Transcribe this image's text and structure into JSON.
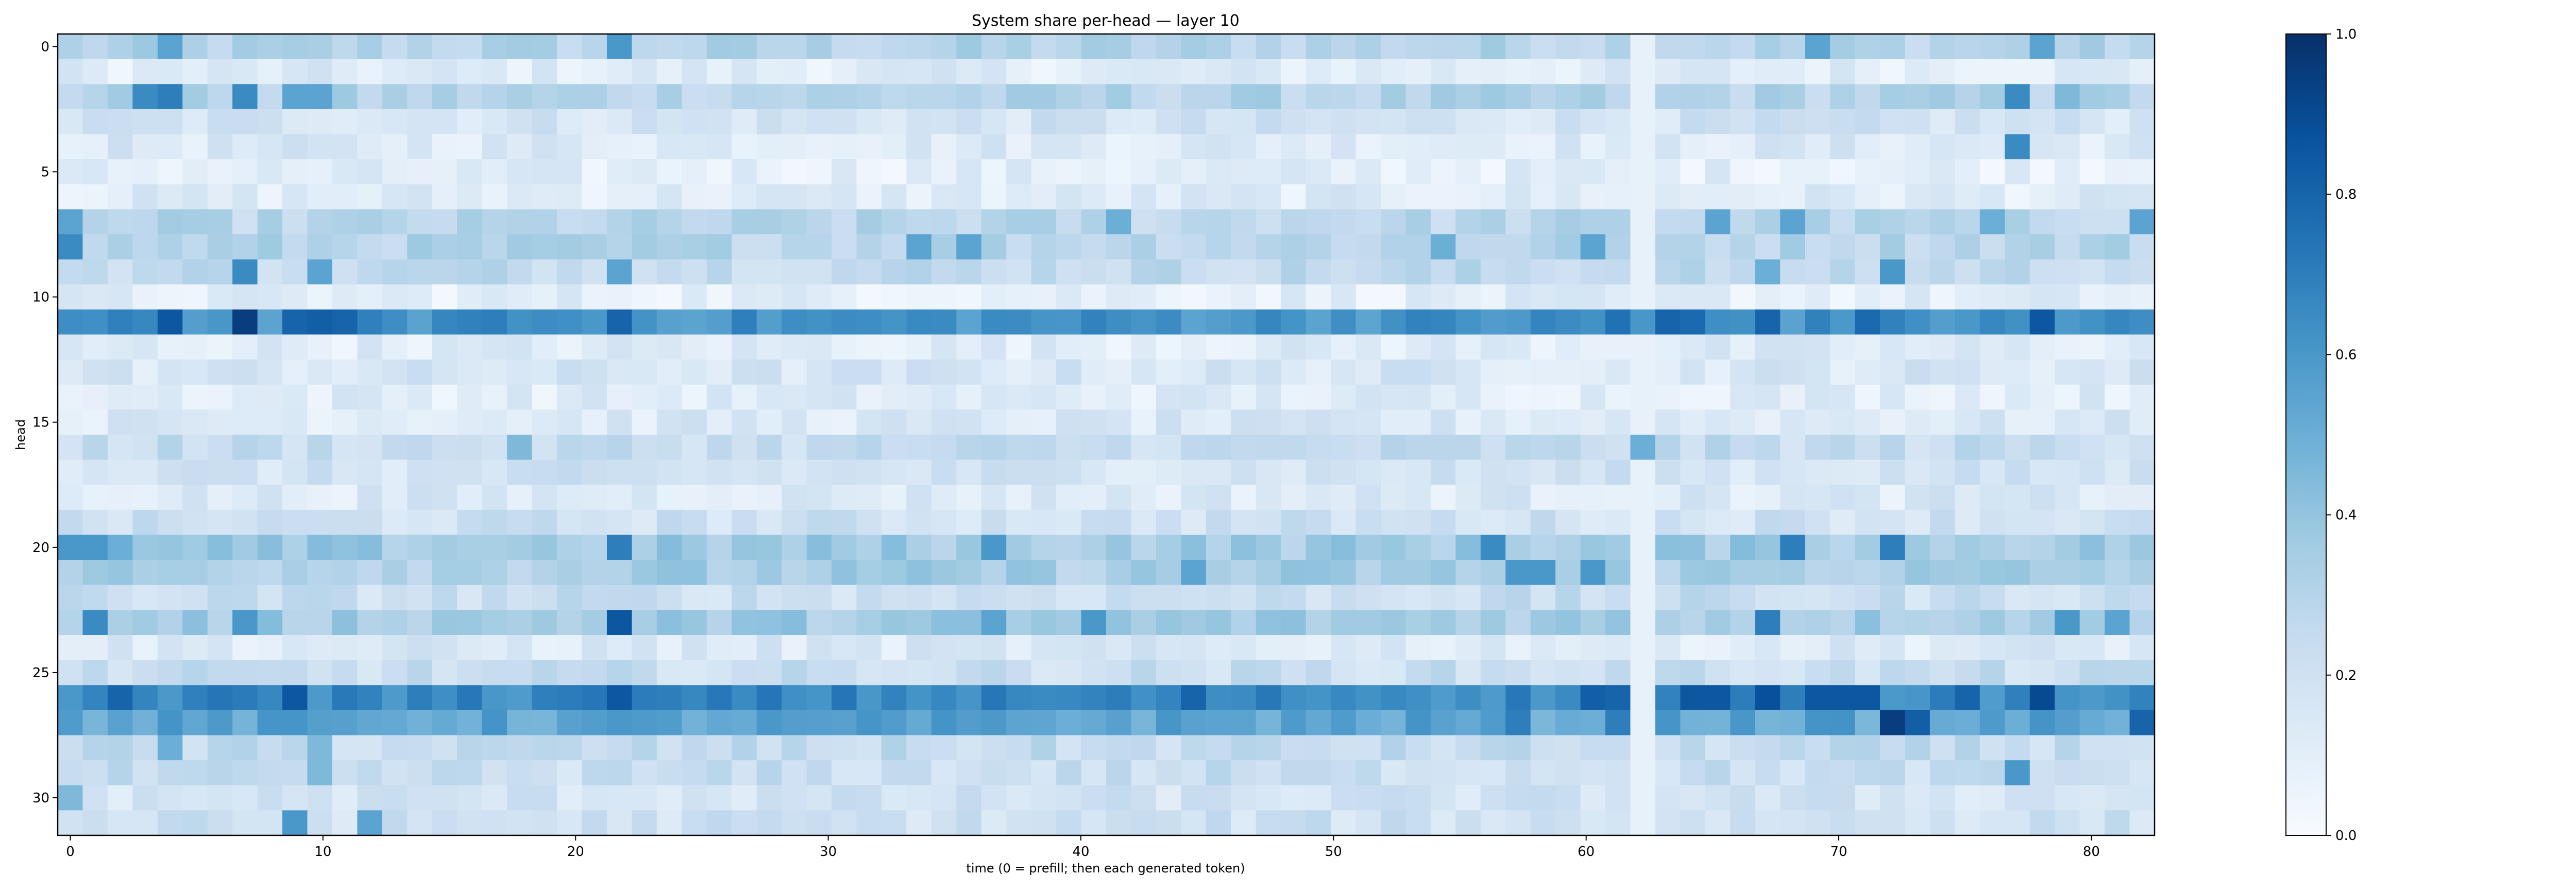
{
  "chart_data": {
    "type": "heatmap",
    "title": "System share per-head — layer 10",
    "xlabel": "time (0 = prefill; then each generated token)",
    "ylabel": "head",
    "n_cols": 84,
    "n_rows": 32,
    "xlim": [
      -0.5,
      82.5
    ],
    "ylim": [
      31.5,
      -0.5
    ],
    "x_ticks": [
      0,
      10,
      20,
      30,
      40,
      50,
      60,
      70,
      80
    ],
    "y_ticks": [
      0,
      5,
      10,
      15,
      20,
      25,
      30
    ],
    "colormap": "Blues",
    "colormap_stops": [
      "#f7fbff",
      "#deebf7",
      "#c6dbef",
      "#9ecae1",
      "#6baed6",
      "#4292c6",
      "#2171b5",
      "#08519c",
      "#08306b"
    ],
    "colorbar": {
      "range": [
        0.0,
        1.0
      ],
      "ticks": [
        "0.0",
        "0.2",
        "0.4",
        "0.6",
        "0.8",
        "1.0"
      ]
    },
    "row_base": [
      0.3,
      0.12,
      0.3,
      0.18,
      0.14,
      0.1,
      0.12,
      0.28,
      0.3,
      0.26,
      0.1,
      0.62,
      0.12,
      0.16,
      0.12,
      0.14,
      0.24,
      0.18,
      0.14,
      0.2,
      0.36,
      0.34,
      0.22,
      0.36,
      0.14,
      0.22,
      0.66,
      0.54,
      0.24,
      0.22,
      0.18,
      0.2
    ],
    "hotspots": [
      [
        0,
        70,
        0.55
      ],
      [
        0,
        79,
        0.55
      ],
      [
        0,
        22,
        0.6
      ],
      [
        0,
        4,
        0.55
      ],
      [
        2,
        3,
        0.65
      ],
      [
        2,
        4,
        0.7
      ],
      [
        2,
        7,
        0.65
      ],
      [
        2,
        9,
        0.55
      ],
      [
        2,
        10,
        0.55
      ],
      [
        2,
        78,
        0.65
      ],
      [
        2,
        80,
        0.45
      ],
      [
        4,
        78,
        0.65
      ],
      [
        7,
        0,
        0.55
      ],
      [
        7,
        83,
        0.55
      ],
      [
        7,
        66,
        0.55
      ],
      [
        7,
        69,
        0.55
      ],
      [
        7,
        77,
        0.5
      ],
      [
        7,
        42,
        0.5
      ],
      [
        8,
        0,
        0.65
      ],
      [
        8,
        34,
        0.55
      ],
      [
        8,
        36,
        0.55
      ],
      [
        8,
        55,
        0.5
      ],
      [
        8,
        61,
        0.55
      ],
      [
        9,
        7,
        0.65
      ],
      [
        9,
        10,
        0.55
      ],
      [
        9,
        22,
        0.55
      ],
      [
        9,
        73,
        0.6
      ],
      [
        9,
        68,
        0.5
      ],
      [
        11,
        4,
        0.85
      ],
      [
        11,
        7,
        0.95
      ],
      [
        11,
        9,
        0.8
      ],
      [
        11,
        10,
        0.82
      ],
      [
        11,
        11,
        0.8
      ],
      [
        11,
        22,
        0.8
      ],
      [
        11,
        79,
        0.85
      ],
      [
        11,
        64,
        0.8
      ],
      [
        11,
        65,
        0.78
      ],
      [
        11,
        62,
        0.75
      ],
      [
        11,
        68,
        0.8
      ],
      [
        11,
        72,
        0.78
      ],
      [
        11,
        17,
        0.7
      ],
      [
        11,
        35,
        0.65
      ],
      [
        11,
        37,
        0.65
      ],
      [
        16,
        63,
        0.5
      ],
      [
        16,
        18,
        0.45
      ],
      [
        20,
        22,
        0.7
      ],
      [
        20,
        37,
        0.6
      ],
      [
        20,
        57,
        0.65
      ],
      [
        20,
        69,
        0.7
      ],
      [
        20,
        73,
        0.7
      ],
      [
        20,
        0,
        0.6
      ],
      [
        20,
        1,
        0.6
      ],
      [
        20,
        2,
        0.5
      ],
      [
        21,
        45,
        0.55
      ],
      [
        21,
        58,
        0.6
      ],
      [
        21,
        59,
        0.6
      ],
      [
        21,
        61,
        0.6
      ],
      [
        23,
        22,
        0.85
      ],
      [
        23,
        1,
        0.65
      ],
      [
        23,
        7,
        0.6
      ],
      [
        23,
        41,
        0.6
      ],
      [
        23,
        68,
        0.7
      ],
      [
        23,
        80,
        0.6
      ],
      [
        23,
        82,
        0.55
      ],
      [
        23,
        37,
        0.55
      ],
      [
        26,
        2,
        0.8
      ],
      [
        26,
        9,
        0.85
      ],
      [
        26,
        22,
        0.85
      ],
      [
        26,
        45,
        0.8
      ],
      [
        26,
        61,
        0.82
      ],
      [
        26,
        62,
        0.8
      ],
      [
        26,
        65,
        0.85
      ],
      [
        26,
        66,
        0.85
      ],
      [
        26,
        68,
        0.88
      ],
      [
        26,
        70,
        0.85
      ],
      [
        26,
        71,
        0.85
      ],
      [
        26,
        72,
        0.85
      ],
      [
        26,
        79,
        0.9
      ],
      [
        26,
        76,
        0.8
      ],
      [
        26,
        0,
        0.6
      ],
      [
        27,
        73,
        0.95
      ],
      [
        27,
        74,
        0.82
      ],
      [
        27,
        83,
        0.8
      ],
      [
        27,
        58,
        0.7
      ],
      [
        27,
        62,
        0.7
      ],
      [
        28,
        4,
        0.5
      ],
      [
        28,
        10,
        0.45
      ],
      [
        29,
        10,
        0.45
      ],
      [
        29,
        78,
        0.6
      ],
      [
        30,
        0,
        0.45
      ],
      [
        31,
        9,
        0.6
      ],
      [
        31,
        12,
        0.55
      ]
    ]
  }
}
